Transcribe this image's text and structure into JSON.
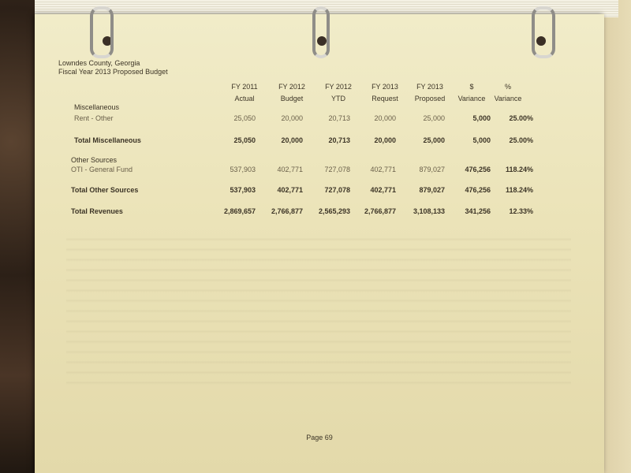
{
  "document": {
    "org": "Lowndes County, Georgia",
    "title": "Fiscal Year 2013 Proposed Budget",
    "columns": [
      {
        "line1": "FY 2011",
        "line2": "Actual"
      },
      {
        "line1": "FY 2012",
        "line2": "Budget"
      },
      {
        "line1": "FY 2012",
        "line2": "YTD"
      },
      {
        "line1": "FY 2013",
        "line2": "Request"
      },
      {
        "line1": "FY 2013",
        "line2": "Proposed"
      },
      {
        "line1": "$",
        "line2": "Variance"
      },
      {
        "line1": "%",
        "line2": "Variance"
      }
    ],
    "rows": [
      {
        "label": "Miscellaneous",
        "values": []
      },
      {
        "label": "Rent - Other",
        "values": [
          "25,050",
          "20,000",
          "20,713",
          "20,000",
          "25,000",
          "5,000",
          "25.00%"
        ]
      },
      {
        "label": "Total Miscellaneous",
        "values": [
          "25,050",
          "20,000",
          "20,713",
          "20,000",
          "25,000",
          "5,000",
          "25.00%"
        ]
      },
      {
        "label": "Other Sources",
        "values": []
      },
      {
        "label": "OTI - General Fund",
        "values": [
          "537,903",
          "402,771",
          "727,078",
          "402,771",
          "879,027",
          "476,256",
          "118.24%"
        ]
      },
      {
        "label": "Total Other Sources",
        "values": [
          "537,903",
          "402,771",
          "727,078",
          "402,771",
          "879,027",
          "476,256",
          "118.24%"
        ]
      },
      {
        "label": "Total Revenues",
        "values": [
          "2,869,657",
          "2,766,877",
          "2,565,293",
          "2,766,877",
          "3,108,133",
          "341,256",
          "12.33%"
        ]
      }
    ],
    "footer": "Page 69"
  }
}
